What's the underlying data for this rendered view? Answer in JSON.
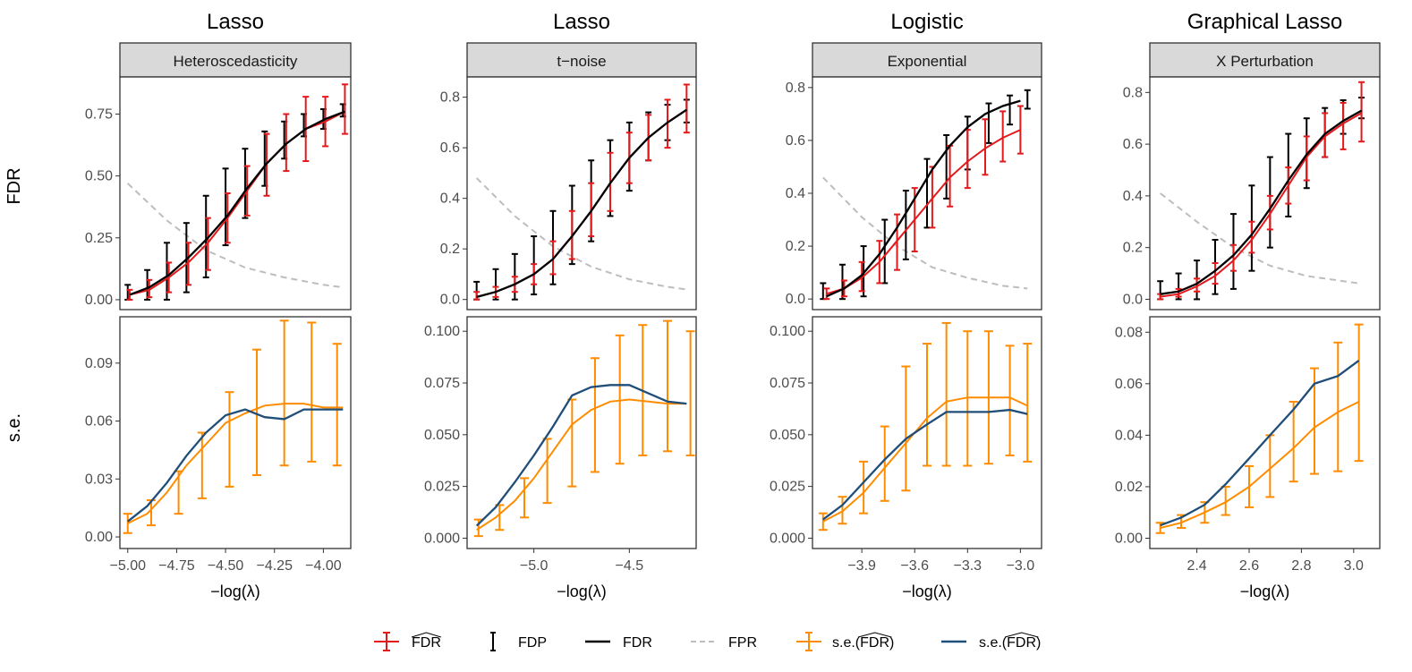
{
  "colors": {
    "fdr_hat": "#e31a1c",
    "fdp": "#000000",
    "fdr": "#000000",
    "fpr": "#bdbdbd",
    "se_hat": "#ff8c00",
    "se_fdr": "#1f4e79",
    "strip_bg": "#d9d9d9"
  },
  "row_labels": [
    "FDR",
    "s.e."
  ],
  "legend": [
    {
      "key": "fdr_hat",
      "label": "FDR",
      "hat": true,
      "style": "errorbar"
    },
    {
      "key": "fdp",
      "label": "FDP",
      "style": "bar"
    },
    {
      "key": "fdr",
      "label": "FDR",
      "style": "line"
    },
    {
      "key": "fpr",
      "label": "FPR",
      "style": "dashed"
    },
    {
      "key": "se_hat",
      "label": "s.e.(FDR)",
      "hat": true,
      "style": "errorbar"
    },
    {
      "key": "se_fdr",
      "label": "s.e.(FDR)",
      "hat": true,
      "style": "line"
    }
  ],
  "chart_data": [
    {
      "type": "line",
      "title": "Lasso",
      "strip": "Heteroscedasticity",
      "xlabel": "−log(λ)",
      "xlim": [
        -5.04,
        -3.86
      ],
      "xticks": [
        -5.0,
        -4.75,
        -4.5,
        -4.25,
        -4.0
      ],
      "xtick_labels": [
        "−5.00",
        "−4.75",
        "−4.50",
        "−4.25",
        "−4.00"
      ],
      "fdr_panel": {
        "ylim": [
          -0.04,
          0.9
        ],
        "yticks": [
          0,
          0.25,
          0.5,
          0.75
        ],
        "ytick_labels": [
          "0.00",
          "0.25",
          "0.50",
          "0.75"
        ],
        "x": [
          -4.99,
          -4.89,
          -4.79,
          -4.69,
          -4.59,
          -4.49,
          -4.39,
          -4.29,
          -4.19,
          -4.09,
          -3.99,
          -3.89
        ],
        "fdr": [
          0.02,
          0.05,
          0.1,
          0.17,
          0.25,
          0.34,
          0.45,
          0.55,
          0.63,
          0.69,
          0.73,
          0.76
        ],
        "fdr_hat": [
          0.02,
          0.04,
          0.09,
          0.15,
          0.23,
          0.33,
          0.44,
          0.55,
          0.63,
          0.69,
          0.72,
          0.76
        ],
        "fdr_hat_lo": [
          0.0,
          0.01,
          0.03,
          0.06,
          0.12,
          0.23,
          0.34,
          0.42,
          0.52,
          0.56,
          0.62,
          0.67
        ],
        "fdr_hat_hi": [
          0.04,
          0.08,
          0.15,
          0.23,
          0.33,
          0.43,
          0.54,
          0.67,
          0.75,
          0.82,
          0.82,
          0.87
        ],
        "fdp_x": [
          -5.0,
          -4.9,
          -4.8,
          -4.7,
          -4.6,
          -4.5,
          -4.4,
          -4.3,
          -4.2,
          -4.1,
          -4.0,
          -3.9
        ],
        "fdp_lo": [
          0.0,
          0.0,
          0.0,
          0.03,
          0.09,
          0.22,
          0.33,
          0.46,
          0.57,
          0.66,
          0.69,
          0.74
        ],
        "fdp_hi": [
          0.06,
          0.12,
          0.23,
          0.31,
          0.42,
          0.53,
          0.61,
          0.68,
          0.72,
          0.75,
          0.77,
          0.79
        ],
        "fpr_x": [
          -5.0,
          -4.8,
          -4.6,
          -4.4,
          -4.2,
          -4.0,
          -3.9
        ],
        "fpr": [
          0.47,
          0.32,
          0.2,
          0.13,
          0.09,
          0.06,
          0.05
        ]
      },
      "se_panel": {
        "ylim": [
          -0.006,
          0.114
        ],
        "yticks": [
          0,
          0.03,
          0.06,
          0.09
        ],
        "ytick_labels": [
          "0.00",
          "0.03",
          "0.06",
          "0.09"
        ],
        "x": [
          -5.0,
          -4.9,
          -4.8,
          -4.7,
          -4.6,
          -4.5,
          -4.4,
          -4.3,
          -4.2,
          -4.1,
          -4.0,
          -3.9
        ],
        "se_hat": [
          0.007,
          0.012,
          0.023,
          0.037,
          0.048,
          0.059,
          0.064,
          0.068,
          0.069,
          0.069,
          0.067,
          0.067
        ],
        "se_fdr": [
          0.008,
          0.016,
          0.028,
          0.042,
          0.054,
          0.063,
          0.066,
          0.062,
          0.061,
          0.066,
          0.066,
          0.066
        ],
        "err_x": [
          -5.0,
          -4.88,
          -4.74,
          -4.62,
          -4.48,
          -4.34,
          -4.2,
          -4.06,
          -3.93
        ],
        "err_lo": [
          0.002,
          0.006,
          0.012,
          0.02,
          0.026,
          0.032,
          0.037,
          0.039,
          0.037
        ],
        "err_hi": [
          0.012,
          0.019,
          0.034,
          0.054,
          0.075,
          0.097,
          0.112,
          0.111,
          0.1
        ]
      }
    },
    {
      "type": "line",
      "title": "Lasso",
      "strip": "t−noise",
      "xlabel": "−log(λ)",
      "xlim": [
        -5.35,
        -4.15
      ],
      "xticks": [
        -5.0,
        -4.5
      ],
      "xtick_labels": [
        "−5.0",
        "−4.5"
      ],
      "fdr_panel": {
        "ylim": [
          -0.04,
          0.88
        ],
        "yticks": [
          0,
          0.2,
          0.4,
          0.6,
          0.8
        ],
        "ytick_labels": [
          "0.0",
          "0.2",
          "0.4",
          "0.6",
          "0.8"
        ],
        "x": [
          -5.3,
          -5.2,
          -5.1,
          -5.0,
          -4.9,
          -4.8,
          -4.7,
          -4.6,
          -4.5,
          -4.4,
          -4.3,
          -4.2
        ],
        "fdr": [
          0.01,
          0.03,
          0.06,
          0.1,
          0.16,
          0.25,
          0.35,
          0.46,
          0.56,
          0.64,
          0.7,
          0.75
        ],
        "fdr_hat": [
          0.01,
          0.03,
          0.06,
          0.1,
          0.16,
          0.25,
          0.35,
          0.46,
          0.56,
          0.64,
          0.7,
          0.75
        ],
        "fdr_hat_lo": [
          0.0,
          0.01,
          0.03,
          0.06,
          0.1,
          0.16,
          0.25,
          0.35,
          0.46,
          0.55,
          0.6,
          0.66
        ],
        "fdr_hat_hi": [
          0.03,
          0.05,
          0.09,
          0.14,
          0.23,
          0.35,
          0.46,
          0.58,
          0.66,
          0.73,
          0.79,
          0.85
        ],
        "fdp_x": [
          -5.3,
          -5.2,
          -5.1,
          -5.0,
          -4.9,
          -4.8,
          -4.7,
          -4.6,
          -4.5,
          -4.4,
          -4.3,
          -4.2
        ],
        "fdp_lo": [
          0.0,
          0.0,
          0.0,
          0.02,
          0.06,
          0.14,
          0.23,
          0.33,
          0.43,
          0.55,
          0.63,
          0.7
        ],
        "fdp_hi": [
          0.07,
          0.12,
          0.18,
          0.25,
          0.35,
          0.45,
          0.55,
          0.63,
          0.7,
          0.74,
          0.77,
          0.79
        ],
        "fpr_x": [
          -5.3,
          -5.1,
          -4.9,
          -4.7,
          -4.5,
          -4.3,
          -4.2
        ],
        "fpr": [
          0.48,
          0.33,
          0.21,
          0.13,
          0.08,
          0.05,
          0.04
        ]
      },
      "se_panel": {
        "ylim": [
          -0.005,
          0.107
        ],
        "yticks": [
          0,
          0.025,
          0.05,
          0.075,
          0.1
        ],
        "ytick_labels": [
          "0.000",
          "0.025",
          "0.050",
          "0.075",
          "0.100"
        ],
        "x": [
          -5.3,
          -5.2,
          -5.1,
          -5.0,
          -4.9,
          -4.8,
          -4.7,
          -4.6,
          -4.5,
          -4.4,
          -4.3,
          -4.2
        ],
        "se_hat": [
          0.004,
          0.01,
          0.018,
          0.029,
          0.042,
          0.055,
          0.062,
          0.066,
          0.067,
          0.066,
          0.065,
          0.065
        ],
        "se_fdr": [
          0.006,
          0.015,
          0.027,
          0.04,
          0.054,
          0.069,
          0.073,
          0.074,
          0.074,
          0.07,
          0.066,
          0.065
        ],
        "err_x": [
          -5.29,
          -5.18,
          -5.05,
          -4.93,
          -4.8,
          -4.68,
          -4.55,
          -4.43,
          -4.3,
          -4.18
        ],
        "err_lo": [
          0.001,
          0.004,
          0.01,
          0.017,
          0.025,
          0.032,
          0.036,
          0.04,
          0.042,
          0.04
        ],
        "err_hi": [
          0.009,
          0.016,
          0.029,
          0.048,
          0.067,
          0.087,
          0.098,
          0.103,
          0.105,
          0.1
        ]
      }
    },
    {
      "type": "line",
      "title": "Logistic",
      "strip": "Exponential",
      "xlabel": "−log(λ)",
      "xlim": [
        -4.18,
        -2.88
      ],
      "xticks": [
        -3.9,
        -3.6,
        -3.3,
        -3.0
      ],
      "xtick_labels": [
        "−3.9",
        "−3.6",
        "−3.3",
        "−3.0"
      ],
      "fdr_panel": {
        "ylim": [
          -0.04,
          0.84
        ],
        "yticks": [
          0,
          0.2,
          0.4,
          0.6,
          0.8
        ],
        "ytick_labels": [
          "0.0",
          "0.2",
          "0.4",
          "0.6",
          "0.8"
        ],
        "x": [
          -4.1,
          -4.0,
          -3.9,
          -3.8,
          -3.7,
          -3.6,
          -3.5,
          -3.4,
          -3.3,
          -3.2,
          -3.1,
          -3.0
        ],
        "fdr": [
          0.01,
          0.04,
          0.09,
          0.17,
          0.27,
          0.38,
          0.49,
          0.58,
          0.65,
          0.7,
          0.73,
          0.75
        ],
        "fdr_hat": [
          0.02,
          0.04,
          0.08,
          0.14,
          0.22,
          0.3,
          0.38,
          0.46,
          0.52,
          0.57,
          0.61,
          0.64
        ],
        "fdr_hat_lo": [
          0.0,
          0.01,
          0.03,
          0.06,
          0.11,
          0.18,
          0.27,
          0.35,
          0.42,
          0.47,
          0.52,
          0.55
        ],
        "fdr_hat_hi": [
          0.04,
          0.07,
          0.14,
          0.22,
          0.32,
          0.42,
          0.5,
          0.58,
          0.64,
          0.68,
          0.71,
          0.73
        ],
        "fdp_x": [
          -4.12,
          -4.01,
          -3.89,
          -3.77,
          -3.65,
          -3.53,
          -3.42,
          -3.3,
          -3.18,
          -3.06,
          -2.96
        ],
        "fdp_lo": [
          0.0,
          0.0,
          0.01,
          0.06,
          0.15,
          0.27,
          0.38,
          0.49,
          0.59,
          0.66,
          0.72
        ],
        "fdp_hi": [
          0.06,
          0.13,
          0.2,
          0.3,
          0.41,
          0.53,
          0.62,
          0.69,
          0.74,
          0.77,
          0.79
        ],
        "fpr_x": [
          -4.12,
          -3.9,
          -3.7,
          -3.5,
          -3.3,
          -3.1,
          -2.96
        ],
        "fpr": [
          0.46,
          0.31,
          0.2,
          0.12,
          0.08,
          0.05,
          0.04
        ]
      },
      "se_panel": {
        "ylim": [
          -0.005,
          0.107
        ],
        "yticks": [
          0,
          0.025,
          0.05,
          0.075,
          0.1
        ],
        "ytick_labels": [
          "0.000",
          "0.025",
          "0.050",
          "0.075",
          "0.100"
        ],
        "x": [
          -4.12,
          -4.01,
          -3.89,
          -3.77,
          -3.65,
          -3.53,
          -3.42,
          -3.3,
          -3.18,
          -3.06,
          -2.96
        ],
        "se_hat": [
          0.008,
          0.013,
          0.022,
          0.034,
          0.046,
          0.058,
          0.066,
          0.068,
          0.068,
          0.068,
          0.064
        ],
        "se_fdr": [
          0.009,
          0.016,
          0.027,
          0.038,
          0.048,
          0.055,
          0.061,
          0.061,
          0.061,
          0.062,
          0.06
        ],
        "err_x": [
          -4.12,
          -4.01,
          -3.89,
          -3.77,
          -3.65,
          -3.53,
          -3.42,
          -3.3,
          -3.18,
          -3.06,
          -2.96
        ],
        "err_lo": [
          0.004,
          0.007,
          0.012,
          0.018,
          0.023,
          0.035,
          0.035,
          0.035,
          0.036,
          0.04,
          0.037
        ],
        "err_hi": [
          0.012,
          0.02,
          0.037,
          0.054,
          0.083,
          0.094,
          0.104,
          0.1,
          0.1,
          0.093,
          0.094
        ]
      }
    },
    {
      "type": "line",
      "title": "Graphical Lasso",
      "strip": "X Perturbation",
      "xlabel": "−log(λ)",
      "xlim": [
        2.22,
        3.1
      ],
      "xticks": [
        2.4,
        2.6,
        2.8,
        3.0
      ],
      "xtick_labels": [
        "2.4",
        "2.6",
        "2.8",
        "3.0"
      ],
      "fdr_panel": {
        "ylim": [
          -0.04,
          0.86
        ],
        "yticks": [
          0,
          0.2,
          0.4,
          0.6,
          0.8
        ],
        "ytick_labels": [
          "0.0",
          "0.2",
          "0.4",
          "0.6",
          "0.8"
        ],
        "x": [
          2.26,
          2.33,
          2.4,
          2.47,
          2.54,
          2.61,
          2.68,
          2.75,
          2.82,
          2.89,
          2.96,
          3.03
        ],
        "fdr": [
          0.02,
          0.03,
          0.06,
          0.11,
          0.17,
          0.25,
          0.35,
          0.46,
          0.56,
          0.64,
          0.69,
          0.73
        ],
        "fdr_hat": [
          0.01,
          0.02,
          0.05,
          0.09,
          0.15,
          0.23,
          0.33,
          0.44,
          0.55,
          0.63,
          0.68,
          0.72
        ],
        "fdr_hat_lo": [
          0.0,
          0.01,
          0.03,
          0.06,
          0.11,
          0.18,
          0.27,
          0.37,
          0.46,
          0.55,
          0.58,
          0.61
        ],
        "fdr_hat_hi": [
          0.02,
          0.04,
          0.08,
          0.14,
          0.21,
          0.3,
          0.4,
          0.51,
          0.63,
          0.72,
          0.76,
          0.84
        ],
        "fdp_x": [
          2.26,
          2.33,
          2.4,
          2.47,
          2.54,
          2.61,
          2.68,
          2.75,
          2.82,
          2.89,
          2.96,
          3.03
        ],
        "fdp_lo": [
          0.0,
          0.0,
          0.0,
          0.02,
          0.04,
          0.11,
          0.2,
          0.32,
          0.43,
          0.55,
          0.64,
          0.7
        ],
        "fdp_hi": [
          0.07,
          0.1,
          0.15,
          0.23,
          0.33,
          0.44,
          0.55,
          0.64,
          0.7,
          0.74,
          0.77,
          0.78
        ],
        "fpr_x": [
          2.26,
          2.4,
          2.54,
          2.68,
          2.82,
          2.96,
          3.03
        ],
        "fpr": [
          0.41,
          0.3,
          0.2,
          0.13,
          0.09,
          0.07,
          0.06
        ]
      },
      "se_panel": {
        "ylim": [
          -0.004,
          0.086
        ],
        "yticks": [
          0,
          0.02,
          0.04,
          0.06,
          0.08
        ],
        "ytick_labels": [
          "0.00",
          "0.02",
          "0.04",
          "0.06",
          "0.08"
        ],
        "x": [
          2.26,
          2.34,
          2.43,
          2.51,
          2.6,
          2.68,
          2.77,
          2.85,
          2.94,
          3.02
        ],
        "se_hat": [
          0.004,
          0.006,
          0.01,
          0.014,
          0.02,
          0.027,
          0.035,
          0.043,
          0.049,
          0.053
        ],
        "se_fdr": [
          0.005,
          0.008,
          0.013,
          0.021,
          0.031,
          0.04,
          0.05,
          0.06,
          0.063,
          0.069
        ],
        "err_x": [
          2.26,
          2.34,
          2.43,
          2.51,
          2.6,
          2.68,
          2.77,
          2.85,
          2.94,
          3.02
        ],
        "err_lo": [
          0.002,
          0.004,
          0.006,
          0.009,
          0.012,
          0.016,
          0.022,
          0.025,
          0.026,
          0.03
        ],
        "err_hi": [
          0.006,
          0.009,
          0.014,
          0.02,
          0.028,
          0.04,
          0.053,
          0.066,
          0.076,
          0.083
        ]
      }
    }
  ]
}
